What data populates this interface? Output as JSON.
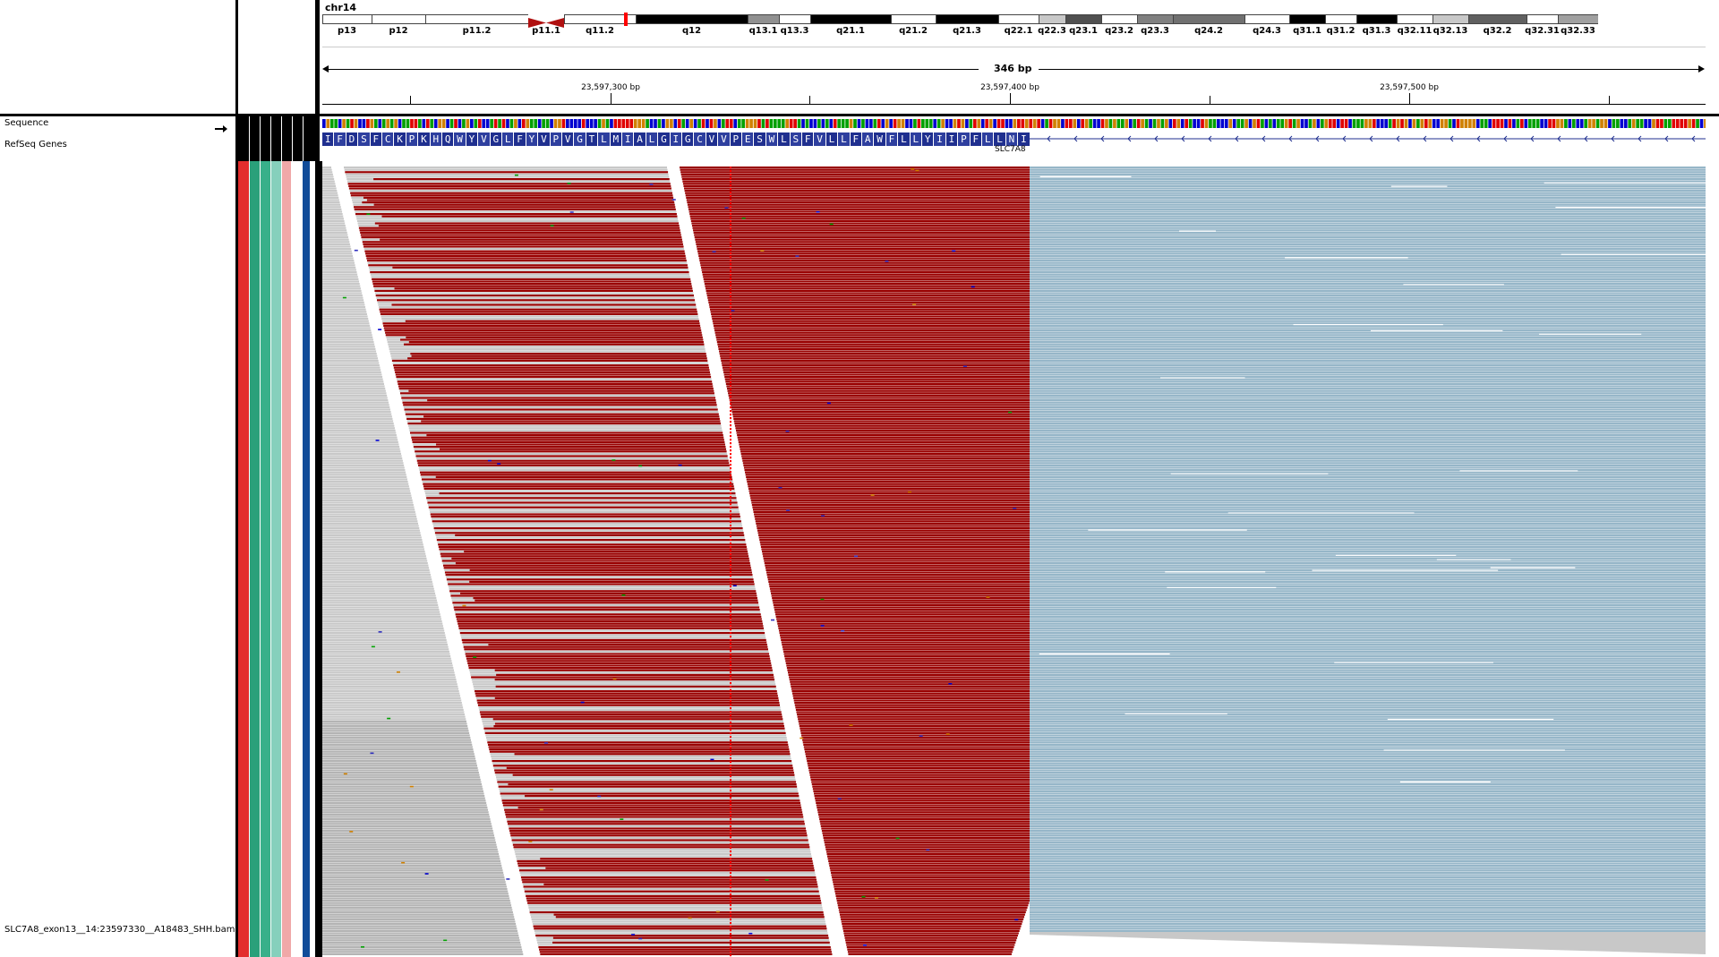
{
  "header": {
    "chromosome": "chr14",
    "span_label": "346 bp",
    "ticks": [
      {
        "label": "23,597,300 bp"
      },
      {
        "label": "23,597,400 bp"
      },
      {
        "label": "23,597,500 bp"
      }
    ],
    "cytobands": [
      {
        "name": "p13",
        "stain": "#ffffff"
      },
      {
        "name": "p12",
        "stain": "#ffffff"
      },
      {
        "name": "p11.2",
        "stain": "#ffffff"
      },
      {
        "name": "p11.1",
        "stain": "#b01010"
      },
      {
        "name": "q11.2",
        "stain": "#ffffff"
      },
      {
        "name": "q12",
        "stain": "#000000"
      },
      {
        "name": "q13.1",
        "stain": "#909090"
      },
      {
        "name": "q13.3",
        "stain": "#ffffff"
      },
      {
        "name": "q21.1",
        "stain": "#000000"
      },
      {
        "name": "q21.2",
        "stain": "#ffffff"
      },
      {
        "name": "q21.3",
        "stain": "#000000"
      },
      {
        "name": "q22.1",
        "stain": "#ffffff"
      },
      {
        "name": "q22.3",
        "stain": "#c8c8c8"
      },
      {
        "name": "q23.1",
        "stain": "#505050"
      },
      {
        "name": "q23.2",
        "stain": "#ffffff"
      },
      {
        "name": "q23.3",
        "stain": "#808080"
      },
      {
        "name": "q24.2",
        "stain": "#707070"
      },
      {
        "name": "q24.3",
        "stain": "#ffffff"
      },
      {
        "name": "q31.1",
        "stain": "#000000"
      },
      {
        "name": "q31.2",
        "stain": "#ffffff"
      },
      {
        "name": "q31.3",
        "stain": "#000000"
      },
      {
        "name": "q32.11",
        "stain": "#ffffff"
      },
      {
        "name": "q32.13",
        "stain": "#c8c8c8"
      },
      {
        "name": "q32.2",
        "stain": "#606060"
      },
      {
        "name": "q32.31",
        "stain": "#ffffff"
      },
      {
        "name": "q32.33",
        "stain": "#a0a0a0"
      }
    ]
  },
  "tracks": {
    "sequence_label": "Sequence",
    "refseq_label": "RefSeq Genes",
    "bam_label": "SLC7A8_exon13__14:23597330__A18483_SHH.bam",
    "gene_name": "SLC7A8",
    "amino_acids": [
      "I",
      "F",
      "D",
      "S",
      "F",
      "C",
      "K",
      "P",
      "K",
      "H",
      "Q",
      "W",
      "Y",
      "V",
      "G",
      "L",
      "F",
      "Y",
      "V",
      "P",
      "V",
      "G",
      "T",
      "L",
      "M",
      "I",
      "A",
      "L",
      "G",
      "I",
      "G",
      "C",
      "V",
      "V",
      "P",
      "E",
      "S",
      "W",
      "L",
      "S",
      "F",
      "V",
      "L",
      "L",
      "F",
      "A",
      "W",
      "F",
      "L",
      "L",
      "Y",
      "I",
      "I",
      "P",
      "F",
      "L",
      "L",
      "N",
      "I"
    ]
  },
  "colors": {
    "read_gray": "#c8c8c8",
    "read_gray_dark": "#b4b4b4",
    "soft_clip_red": "#990000",
    "read_blue": "#96b6c8",
    "aa_blue": "#1f2f8f",
    "mark_red": "#ff0000",
    "attr_bars": [
      "#e32d2d",
      "#2aa07a",
      "#38b08a",
      "#86d0bc",
      "#f0a8a8",
      "#ffffff",
      "#114c99"
    ]
  }
}
